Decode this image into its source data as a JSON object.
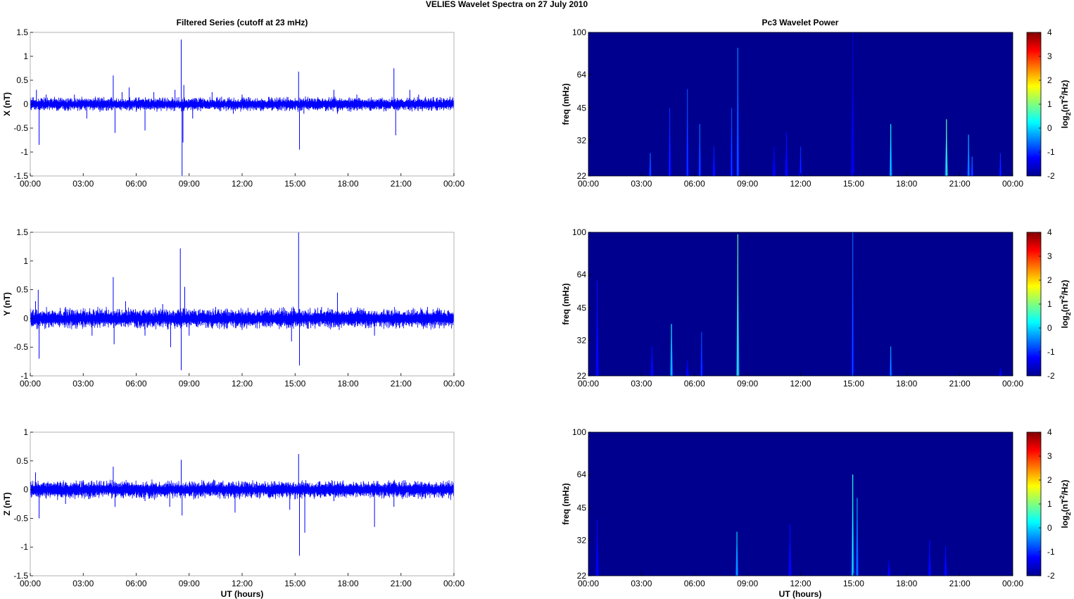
{
  "figure": {
    "suptitle": "VELIES Wavelet Spectra on 27 July      2010",
    "left_title": "Filtered Series (cutoff at 23 mHz)",
    "right_title": "Pc3 Wavelet Power",
    "x_label": "UT (hours)"
  },
  "colors": {
    "trace": "#0000ff",
    "spectrum_background": "#00008f",
    "axis": "#000000"
  },
  "chart_data": [
    {
      "id": "x-series",
      "type": "line",
      "ylabel": "X (nT)",
      "x_ticks": [
        "00:00",
        "03:00",
        "06:00",
        "09:00",
        "12:00",
        "15:00",
        "18:00",
        "21:00",
        "00:00"
      ],
      "xlim": [
        0,
        24
      ],
      "ylim": [
        -1.5,
        1.5
      ],
      "y_ticks": [
        1.5,
        1,
        0.5,
        0,
        -0.5,
        -1,
        -1.5
      ],
      "y_tick_labels": [
        "1.5",
        "1",
        "0.5",
        "0",
        "-0.5",
        "-1",
        "-1.5"
      ],
      "noise_band": 0.12,
      "spikes": [
        [
          0.35,
          0.3
        ],
        [
          0.5,
          -0.85
        ],
        [
          0.9,
          0.2
        ],
        [
          2.5,
          0.2
        ],
        [
          3.2,
          -0.3
        ],
        [
          4.7,
          0.6
        ],
        [
          4.8,
          -0.6
        ],
        [
          5.2,
          0.25
        ],
        [
          5.6,
          0.35
        ],
        [
          6.5,
          -0.55
        ],
        [
          7.0,
          0.25
        ],
        [
          8.2,
          0.3
        ],
        [
          8.55,
          1.35
        ],
        [
          8.6,
          -1.5
        ],
        [
          8.65,
          -0.8
        ],
        [
          8.7,
          0.4
        ],
        [
          9.2,
          -0.3
        ],
        [
          10.3,
          0.25
        ],
        [
          11.5,
          -0.2
        ],
        [
          12.0,
          0.2
        ],
        [
          13.5,
          0.15
        ],
        [
          15.2,
          0.68
        ],
        [
          15.25,
          -0.95
        ],
        [
          15.5,
          -0.2
        ],
        [
          17.2,
          0.3
        ],
        [
          17.4,
          -0.2
        ],
        [
          18.5,
          0.2
        ],
        [
          20.6,
          0.75
        ],
        [
          20.7,
          -0.65
        ],
        [
          21.5,
          0.3
        ],
        [
          22.0,
          0.2
        ]
      ]
    },
    {
      "id": "y-series",
      "type": "line",
      "ylabel": "Y (nT)",
      "x_ticks": [
        "00:00",
        "03:00",
        "06:00",
        "09:00",
        "12:00",
        "15:00",
        "18:00",
        "21:00",
        "00:00"
      ],
      "xlim": [
        0,
        24
      ],
      "ylim": [
        -1,
        1.5
      ],
      "y_ticks": [
        1.5,
        1,
        0.5,
        0,
        -0.5,
        -1
      ],
      "y_tick_labels": [
        "1.5",
        "1",
        "0.5",
        "0",
        "-0.5",
        "-1"
      ],
      "noise_band": 0.15,
      "spikes": [
        [
          0.3,
          0.3
        ],
        [
          0.45,
          0.5
        ],
        [
          0.5,
          -0.7
        ],
        [
          2.0,
          0.2
        ],
        [
          3.5,
          -0.3
        ],
        [
          4.7,
          0.72
        ],
        [
          4.75,
          -0.45
        ],
        [
          5.4,
          0.3
        ],
        [
          6.5,
          -0.3
        ],
        [
          7.5,
          0.25
        ],
        [
          7.95,
          -0.5
        ],
        [
          8.5,
          1.22
        ],
        [
          8.55,
          -0.9
        ],
        [
          8.75,
          0.55
        ],
        [
          9.0,
          -0.3
        ],
        [
          10.5,
          0.2
        ],
        [
          12.0,
          -0.2
        ],
        [
          14.8,
          -0.4
        ],
        [
          15.2,
          1.5
        ],
        [
          15.25,
          -0.82
        ],
        [
          16.5,
          0.2
        ],
        [
          17.4,
          0.45
        ],
        [
          17.5,
          -0.2
        ],
        [
          19.5,
          -0.3
        ],
        [
          22.5,
          0.2
        ]
      ]
    },
    {
      "id": "z-series",
      "type": "line",
      "ylabel": "Z (nT)",
      "x_ticks": [
        "00:00",
        "03:00",
        "06:00",
        "09:00",
        "12:00",
        "15:00",
        "18:00",
        "21:00",
        "00:00"
      ],
      "xlim": [
        0,
        24
      ],
      "ylim": [
        -1.5,
        1
      ],
      "y_ticks": [
        1,
        0.5,
        0,
        -0.5,
        -1,
        -1.5
      ],
      "y_tick_labels": [
        "1",
        "0.5",
        "0",
        "-0.5",
        "-1",
        "-1.5"
      ],
      "noise_band": 0.13,
      "spikes": [
        [
          0.3,
          0.3
        ],
        [
          0.5,
          -0.5
        ],
        [
          2.0,
          -0.25
        ],
        [
          4.7,
          0.4
        ],
        [
          4.8,
          -0.3
        ],
        [
          6.5,
          -0.2
        ],
        [
          7.9,
          -0.3
        ],
        [
          8.55,
          0.52
        ],
        [
          8.6,
          -0.45
        ],
        [
          11.6,
          -0.4
        ],
        [
          14.7,
          -0.35
        ],
        [
          15.2,
          0.62
        ],
        [
          15.25,
          -1.15
        ],
        [
          15.55,
          -0.75
        ],
        [
          17.2,
          -0.2
        ],
        [
          19.5,
          -0.65
        ],
        [
          20.6,
          -0.3
        ]
      ]
    },
    {
      "id": "x-power",
      "type": "heatmap",
      "ylabel": "freq (mHz)",
      "colorbar_label": "log2(nT2/Hz)",
      "x_ticks": [
        "00:00",
        "03:00",
        "06:00",
        "09:00",
        "12:00",
        "15:00",
        "18:00",
        "21:00",
        "00:00"
      ],
      "xlim": [
        0,
        24
      ],
      "ylim": [
        22,
        100
      ],
      "yscale": "log",
      "y_ticks": [
        100,
        64,
        45,
        32,
        22
      ],
      "y_tick_labels": [
        "100",
        "64",
        "45",
        "32",
        "22"
      ],
      "clim": [
        -2,
        4
      ],
      "colorbar_ticks": [
        "4",
        "3",
        "2",
        "1",
        "0",
        "-1",
        "-2"
      ],
      "streaks": [
        [
          3.5,
          28,
          -0.6
        ],
        [
          4.6,
          45,
          -1.0
        ],
        [
          5.6,
          55,
          -0.8
        ],
        [
          6.3,
          38,
          -0.6
        ],
        [
          7.1,
          30,
          -1.1
        ],
        [
          8.1,
          45,
          -0.8
        ],
        [
          8.45,
          85,
          -0.5
        ],
        [
          10.5,
          30,
          -1.3
        ],
        [
          11.2,
          35,
          -1.2
        ],
        [
          12.0,
          30,
          -1.0
        ],
        [
          14.95,
          100,
          -1.5
        ],
        [
          17.1,
          38,
          0.2
        ],
        [
          20.25,
          40,
          0.8
        ],
        [
          21.5,
          34,
          -0.2
        ],
        [
          21.7,
          27,
          -0.6
        ],
        [
          23.3,
          28,
          -1.0
        ]
      ]
    },
    {
      "id": "y-power",
      "type": "heatmap",
      "ylabel": "freq (mHz)",
      "colorbar_label": "log2(nT2/Hz)",
      "x_ticks": [
        "00:00",
        "03:00",
        "06:00",
        "09:00",
        "12:00",
        "15:00",
        "18:00",
        "21:00",
        "00:00"
      ],
      "xlim": [
        0,
        24
      ],
      "ylim": [
        22,
        100
      ],
      "yscale": "log",
      "y_ticks": [
        100,
        64,
        45,
        32,
        22
      ],
      "y_tick_labels": [
        "100",
        "64",
        "45",
        "32",
        "22"
      ],
      "clim": [
        -2,
        4
      ],
      "colorbar_ticks": [
        "4",
        "3",
        "2",
        "1",
        "0",
        "-1",
        "-2"
      ],
      "streaks": [
        [
          0.5,
          60,
          -1.2
        ],
        [
          3.6,
          30,
          -1.2
        ],
        [
          4.7,
          38,
          0.2
        ],
        [
          5.6,
          26,
          -1.3
        ],
        [
          6.4,
          35,
          -0.8
        ],
        [
          8.45,
          98,
          0.8
        ],
        [
          14.95,
          100,
          -0.7
        ],
        [
          17.1,
          30,
          -0.3
        ],
        [
          23.3,
          24,
          -1.3
        ]
      ]
    },
    {
      "id": "z-power",
      "type": "heatmap",
      "ylabel": "freq (mHz)",
      "colorbar_label": "log2(nT2/Hz)",
      "x_ticks": [
        "00:00",
        "03:00",
        "06:00",
        "09:00",
        "12:00",
        "15:00",
        "18:00",
        "21:00",
        "00:00"
      ],
      "xlim": [
        0,
        24
      ],
      "ylim": [
        22,
        100
      ],
      "yscale": "log",
      "y_ticks": [
        100,
        64,
        45,
        32,
        22
      ],
      "y_tick_labels": [
        "100",
        "64",
        "45",
        "32",
        "22"
      ],
      "clim": [
        -2,
        4
      ],
      "colorbar_ticks": [
        "4",
        "3",
        "2",
        "1",
        "0",
        "-1",
        "-2"
      ],
      "streaks": [
        [
          0.5,
          40,
          -1.3
        ],
        [
          8.4,
          35,
          0.0
        ],
        [
          11.4,
          38,
          -1.2
        ],
        [
          14.95,
          64,
          0.4
        ],
        [
          15.2,
          50,
          -0.3
        ],
        [
          17.0,
          26,
          -1.3
        ],
        [
          19.3,
          32,
          -1.2
        ],
        [
          20.2,
          30,
          -1.2
        ]
      ]
    }
  ]
}
